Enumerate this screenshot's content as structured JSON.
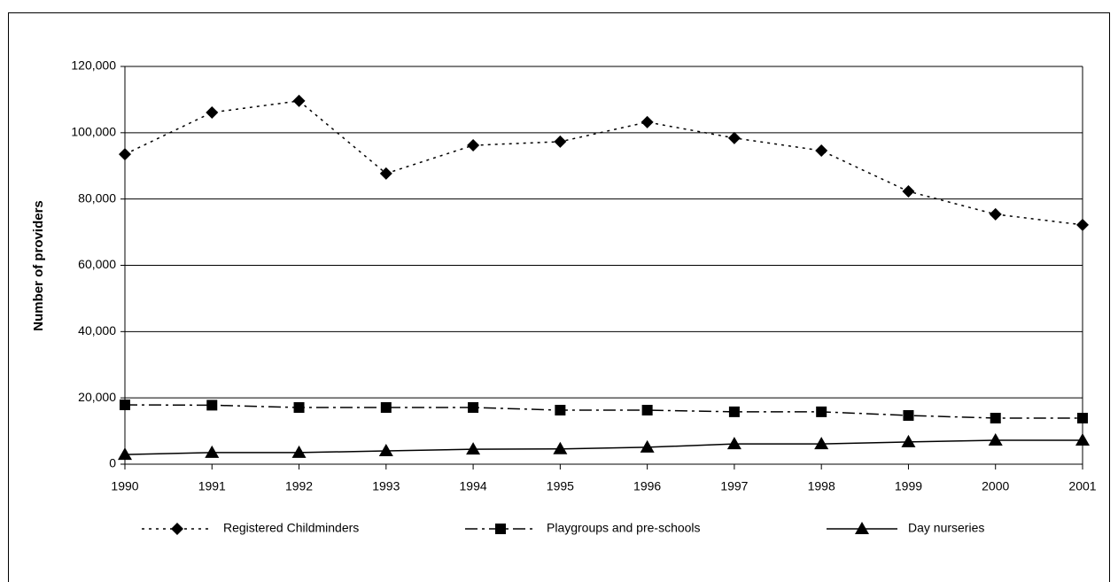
{
  "chart_data": {
    "type": "line",
    "y_label": "Number of providers",
    "categories": [
      "1990",
      "1991",
      "1992",
      "1993",
      "1994",
      "1995",
      "1996",
      "1997",
      "1998",
      "1999",
      "2000",
      "2001"
    ],
    "series": [
      {
        "name": "Registered Childminders",
        "color": "#000000",
        "dash": "3,5",
        "marker": "diamond",
        "values": [
          93500,
          106100,
          109600,
          87700,
          96200,
          97300,
          103200,
          98400,
          94600,
          82300,
          75400,
          72200
        ]
      },
      {
        "name": "Playgroups and pre-schools",
        "color": "#000000",
        "dash": "14,5,3,5",
        "marker": "square",
        "values": [
          17900,
          17800,
          17100,
          17100,
          17100,
          16300,
          16300,
          15800,
          15800,
          14700,
          13900,
          13900
        ]
      },
      {
        "name": "Day nurseries",
        "color": "#000000",
        "dash": "none",
        "marker": "triangle",
        "values": [
          2900,
          3500,
          3500,
          4000,
          4500,
          4600,
          5100,
          6100,
          6100,
          6700,
          7200,
          7200
        ]
      }
    ],
    "ylim": [
      0,
      120000
    ],
    "yticks": [
      0,
      {
        "value": 20000,
        "label": "20,000"
      },
      {
        "value": 40000,
        "label": "40,000"
      },
      {
        "value": 60000,
        "label": "60,000"
      },
      {
        "value": 80000,
        "label": "80,000"
      },
      {
        "value": 100000,
        "label": "100,000"
      },
      {
        "value": 120000,
        "label": "120,000"
      }
    ],
    "grid": true,
    "legend": "bottom"
  }
}
